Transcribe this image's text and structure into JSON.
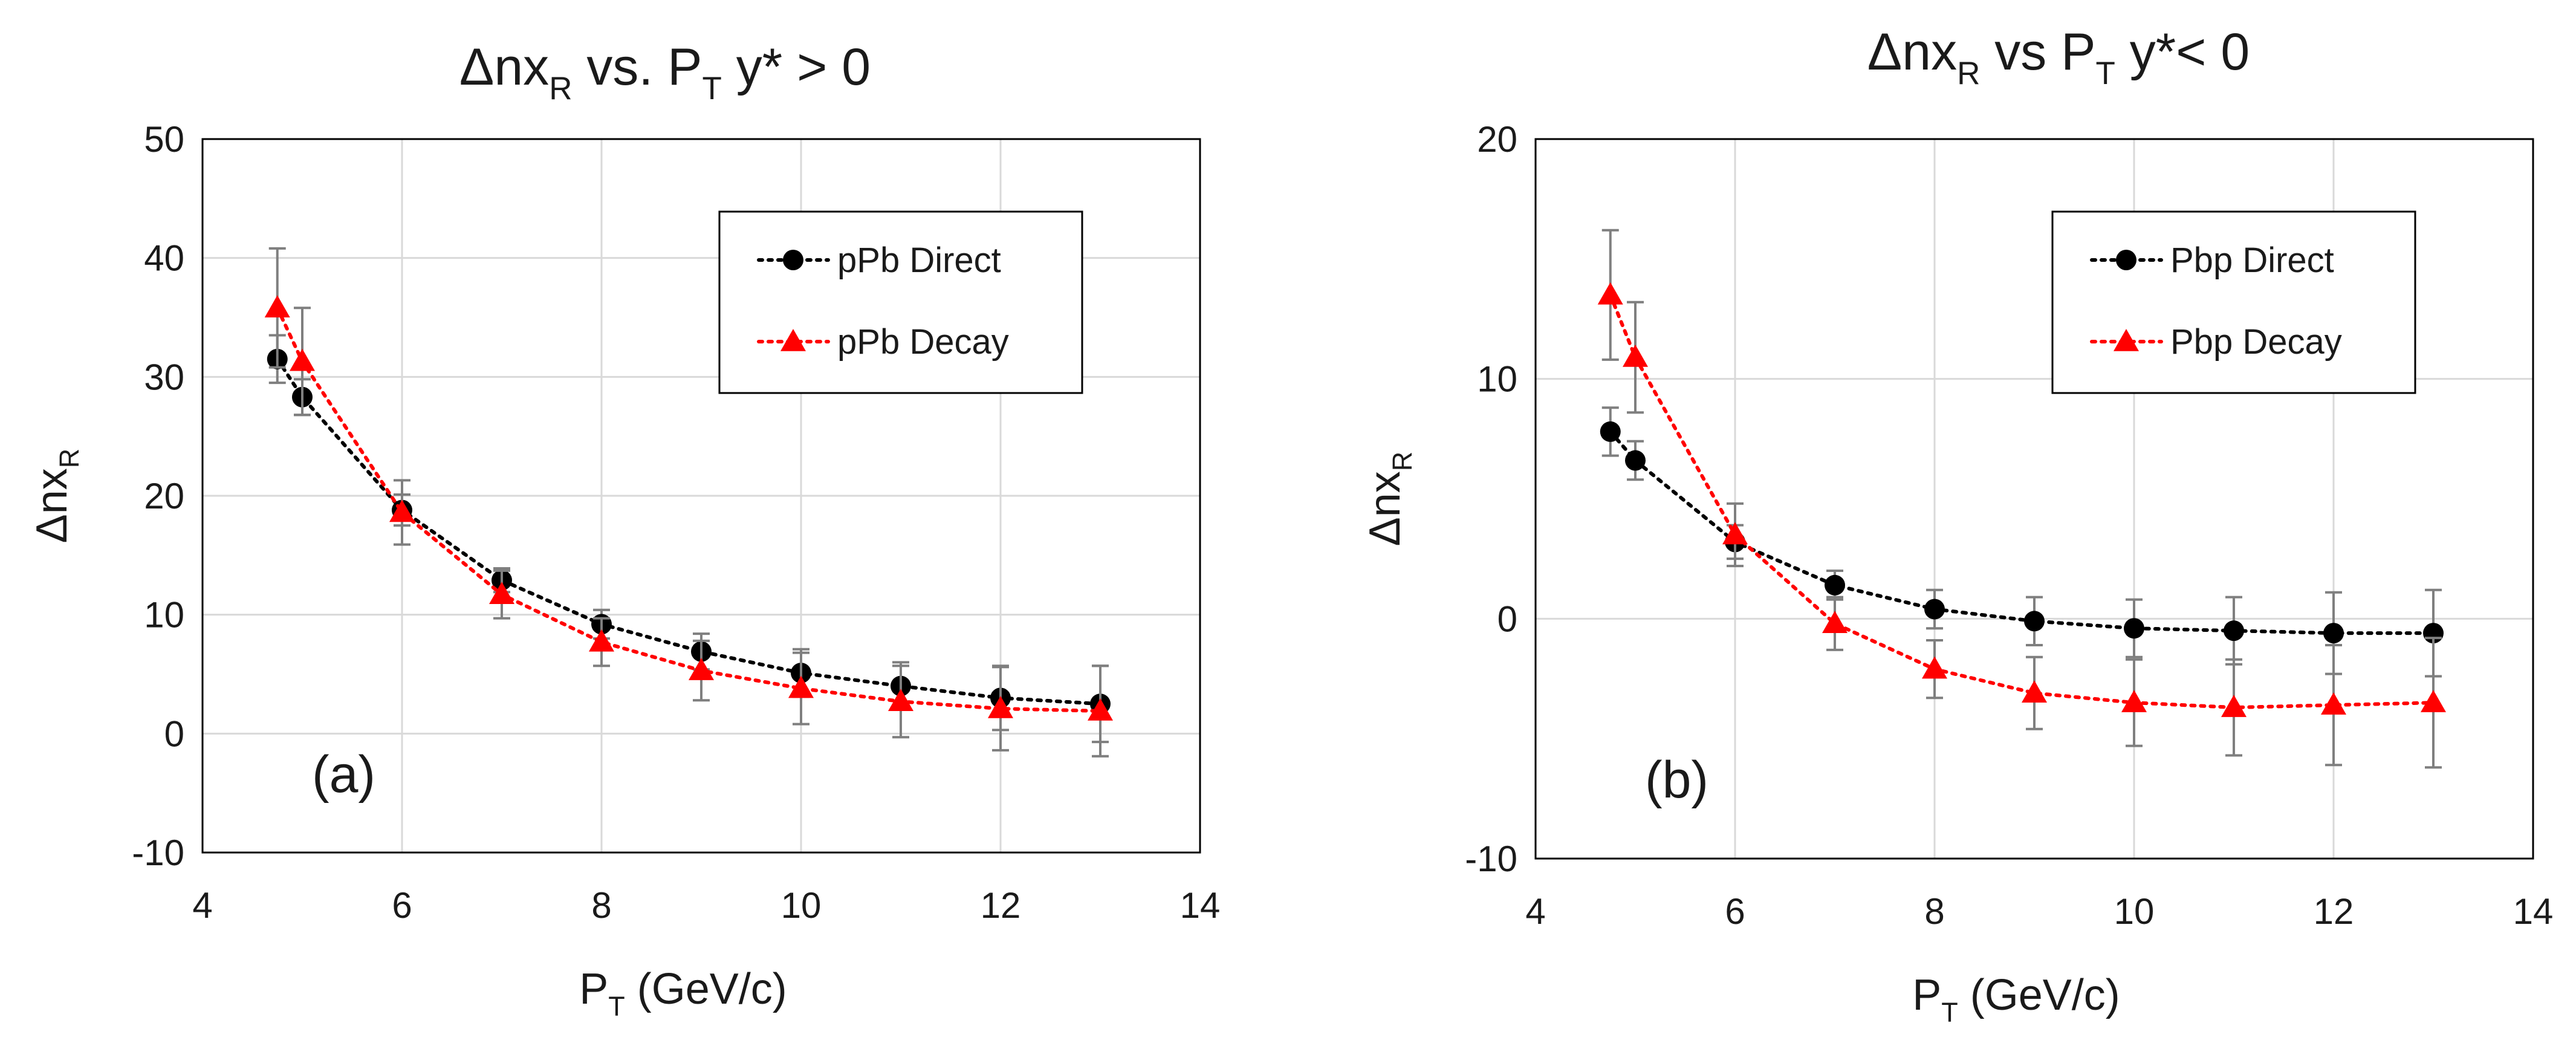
{
  "chart_data": [
    {
      "type": "scatter",
      "panel_label": "(a)",
      "title": {
        "main": "Δnx",
        "sub": "R",
        "mid": " vs. P",
        "sub2": "T",
        "tail": " y* > 0"
      },
      "xlabel": {
        "main": "P",
        "sub": "T",
        "tail": " (GeV/c)"
      },
      "ylabel": {
        "main": "Δnx",
        "sub": "R"
      },
      "xlim": [
        4,
        14
      ],
      "ylim": [
        -10,
        50
      ],
      "xticks": [
        4,
        6,
        8,
        10,
        12,
        14
      ],
      "yticks": [
        -10,
        0,
        10,
        20,
        30,
        40,
        50
      ],
      "grid": true,
      "legend_position": "top-right",
      "series": [
        {
          "name": "pPb Direct",
          "color": "#000000",
          "marker": "circle",
          "x": [
            4.75,
            5,
            6,
            7,
            8,
            9,
            10,
            11,
            12,
            13
          ],
          "y": [
            31.5,
            28.3,
            18.8,
            12.9,
            9.2,
            6.9,
            5.1,
            4.0,
            3.0,
            2.5
          ],
          "err": [
            2.0,
            1.5,
            1.3,
            1.0,
            1.2,
            1.5,
            2.0,
            2.0,
            2.7,
            3.2
          ]
        },
        {
          "name": "pPb Decay",
          "color": "#ff0000",
          "marker": "triangle",
          "x": [
            4.75,
            5,
            6,
            7,
            8,
            9,
            10,
            11,
            12,
            13
          ],
          "y": [
            35.8,
            31.3,
            18.6,
            11.7,
            7.7,
            5.3,
            3.8,
            2.7,
            2.1,
            1.9
          ],
          "err": [
            5.0,
            4.5,
            2.7,
            2.0,
            2.0,
            2.5,
            3.0,
            3.0,
            3.5,
            3.8
          ]
        }
      ]
    },
    {
      "type": "scatter",
      "panel_label": "(b)",
      "title": {
        "main": "Δnx",
        "sub": "R",
        "mid": " vs P",
        "sub2": "T",
        "tail": " y*< 0"
      },
      "xlabel": {
        "main": "P",
        "sub": "T",
        "tail": "  (GeV/c)"
      },
      "ylabel": {
        "main": "Δnx",
        "sub": "R"
      },
      "xlim": [
        4,
        14
      ],
      "ylim": [
        -10,
        20
      ],
      "xticks": [
        4,
        6,
        8,
        10,
        12,
        14
      ],
      "yticks": [
        -10,
        0,
        10,
        20
      ],
      "grid": true,
      "legend_position": "top-right",
      "series": [
        {
          "name": "Pbp Direct",
          "color": "#000000",
          "marker": "circle",
          "x": [
            4.75,
            5,
            6,
            7,
            8,
            9,
            10,
            11,
            12,
            13
          ],
          "y": [
            7.8,
            6.6,
            3.2,
            1.4,
            0.4,
            -0.1,
            -0.4,
            -0.5,
            -0.6,
            -0.6
          ],
          "err": [
            1.0,
            0.8,
            0.7,
            0.6,
            0.8,
            1.0,
            1.2,
            1.4,
            1.7,
            1.8
          ]
        },
        {
          "name": "Pbp Decay",
          "color": "#ff0000",
          "marker": "triangle",
          "x": [
            4.75,
            5,
            6,
            7,
            8,
            9,
            10,
            11,
            12,
            13
          ],
          "y": [
            13.5,
            10.9,
            3.5,
            -0.2,
            -2.1,
            -3.1,
            -3.5,
            -3.7,
            -3.6,
            -3.5
          ],
          "err": [
            2.7,
            2.3,
            1.3,
            1.1,
            1.2,
            1.5,
            1.8,
            2.0,
            2.5,
            2.7
          ]
        }
      ]
    }
  ]
}
